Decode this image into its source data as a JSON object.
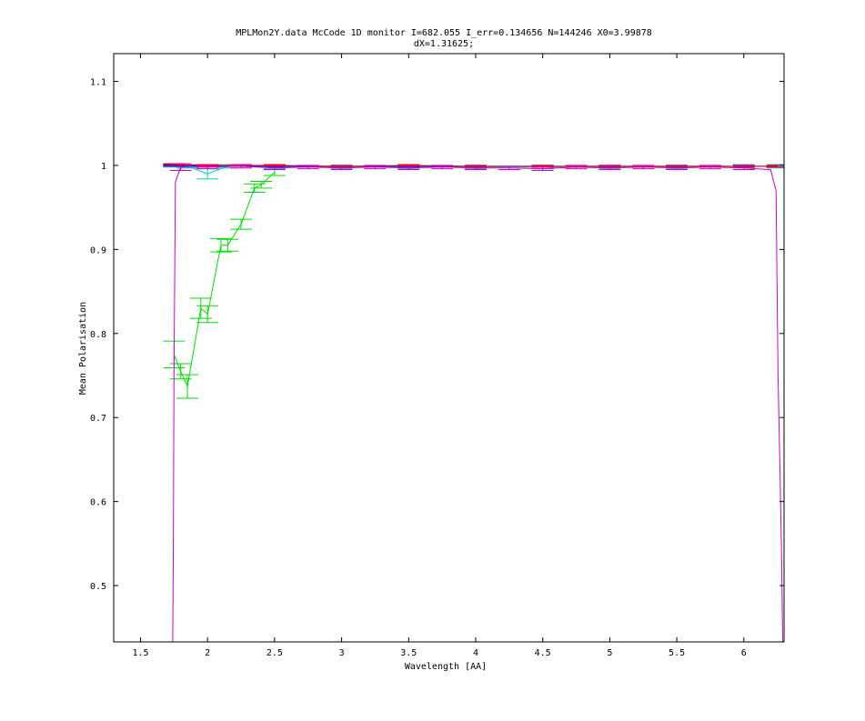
{
  "chart_data": {
    "type": "line",
    "title_line1": "MPLMon2Y.data McCode 1D monitor I=682.055 I_err=0.134656 N=144246 X0=3.99878",
    "title_line2": "dX=1.31625;",
    "xlabel": "Wavelength [AA]",
    "ylabel": "Mean Polarisation",
    "xlim": [
      1.3,
      6.3
    ],
    "ylim": [
      0.433,
      1.133
    ],
    "xticks": [
      "1.5",
      "2",
      "2.5",
      "3",
      "3.5",
      "4",
      "4.5",
      "5",
      "5.5",
      "6"
    ],
    "yticks": [
      "0.5",
      "0.6",
      "0.7",
      "0.8",
      "0.9",
      "1",
      "1.1"
    ],
    "grid": false,
    "legend": "none",
    "series": [
      {
        "color": "#00dd00",
        "x": [
          1.75,
          1.8,
          1.85,
          1.95,
          2.0,
          2.1,
          2.15,
          2.25,
          2.35,
          2.4,
          2.5
        ],
        "y": [
          0.775,
          0.755,
          0.737,
          0.83,
          0.823,
          0.905,
          0.905,
          0.93,
          0.973,
          0.977,
          0.992
        ],
        "err": [
          0.016,
          0.009,
          0.014,
          0.012,
          0.01,
          0.008,
          0.007,
          0.006,
          0.005,
          0.004,
          0.004
        ]
      },
      {
        "color": "#00cccc",
        "x": [
          1.75,
          1.85,
          2.0,
          2.15,
          2.5,
          3.0,
          3.5,
          4.0,
          4.5,
          5.0,
          5.5,
          6.0,
          6.25
        ],
        "y": [
          1.0,
          0.999,
          0.99,
          0.999,
          0.998,
          0.998,
          0.998,
          0.998,
          0.998,
          0.998,
          0.998,
          0.999,
          0.999
        ],
        "err": [
          0.002,
          0.002,
          0.006,
          0.002,
          0.002,
          0.002,
          0.002,
          0.002,
          0.002,
          0.002,
          0.002,
          0.002,
          0.002
        ]
      },
      {
        "color": "#0000ff",
        "x": [
          1.75,
          2.0,
          2.5,
          3.0,
          3.5,
          4.0,
          4.5,
          5.0,
          5.5,
          6.0,
          6.25
        ],
        "y": [
          1.0,
          0.999,
          0.999,
          0.999,
          0.999,
          0.999,
          0.999,
          0.999,
          0.999,
          0.999,
          0.999
        ],
        "err": [
          0.001,
          0.001,
          0.001,
          0.001,
          0.001,
          0.001,
          0.001,
          0.001,
          0.001,
          0.001,
          0.001
        ]
      },
      {
        "color": "#ff0000",
        "x": [
          1.75,
          2.0,
          2.5,
          3.0,
          3.5,
          4.0,
          4.5,
          5.0,
          5.5,
          6.0,
          6.25
        ],
        "y": [
          1.001,
          1.0,
          1.0,
          0.999,
          1.0,
          0.999,
          0.999,
          0.999,
          0.999,
          0.999,
          0.999
        ],
        "err": [
          0.001,
          0.001,
          0.001,
          0.001,
          0.001,
          0.001,
          0.001,
          0.001,
          0.001,
          0.001,
          0.001
        ]
      },
      {
        "color": "#cc00cc",
        "x": [
          1.74,
          1.745,
          1.75,
          1.76,
          1.8,
          2.0,
          2.25,
          2.5,
          2.75,
          3.0,
          3.25,
          3.5,
          3.75,
          4.0,
          4.25,
          4.5,
          4.75,
          5.0,
          5.25,
          5.5,
          5.75,
          6.0,
          6.2,
          6.24,
          6.255,
          6.28,
          6.29
        ],
        "y": [
          0.433,
          0.55,
          0.75,
          0.98,
          0.998,
          0.998,
          0.999,
          0.997,
          0.998,
          0.997,
          0.998,
          0.997,
          0.998,
          0.997,
          0.997,
          0.996,
          0.998,
          0.997,
          0.998,
          0.997,
          0.998,
          0.997,
          0.995,
          0.97,
          0.75,
          0.55,
          0.433
        ],
        "err": [
          0,
          0,
          0,
          0,
          0.004,
          0.002,
          0.002,
          0.002,
          0.002,
          0.002,
          0.002,
          0.002,
          0.002,
          0.002,
          0.002,
          0.002,
          0.002,
          0.002,
          0.002,
          0.002,
          0.002,
          0.002,
          0,
          0,
          0,
          0,
          0
        ]
      }
    ]
  }
}
